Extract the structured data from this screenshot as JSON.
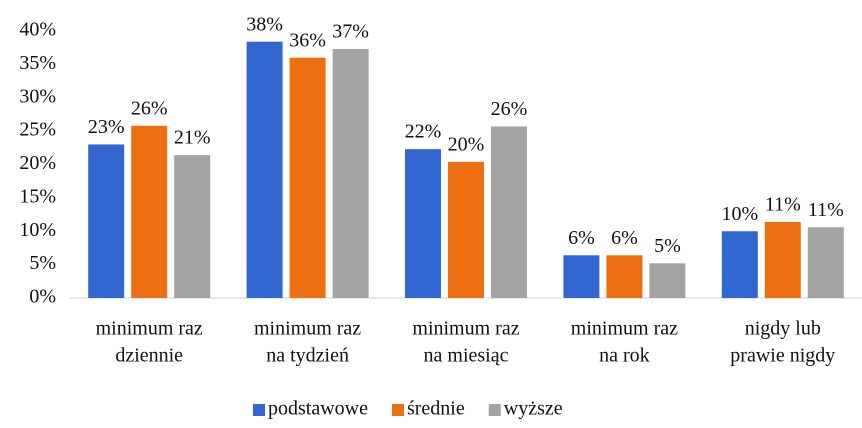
{
  "chart_data": {
    "type": "bar",
    "categories": [
      [
        "minimum raz",
        "dziennie"
      ],
      [
        "minimum raz",
        "na tydzień"
      ],
      [
        "minimum raz",
        "na miesiąc"
      ],
      [
        "minimum raz",
        "na rok"
      ],
      [
        "nigdy lub",
        "prawie nigdy"
      ]
    ],
    "series": [
      {
        "name": "podstawowe",
        "color": "#3266d0",
        "values": [
          23,
          38.4,
          22.3,
          6.4,
          10
        ],
        "value_labels": [
          "23%",
          "38%",
          "22%",
          "6%",
          "10%"
        ]
      },
      {
        "name": "średnie",
        "color": "#ee6e12",
        "values": [
          25.8,
          36,
          20.4,
          6.4,
          11.4
        ],
        "value_labels": [
          "26%",
          "36%",
          "20%",
          "6%",
          "11%"
        ]
      },
      {
        "name": "wyższe",
        "color": "#a3a3a3",
        "values": [
          21.4,
          37.3,
          25.7,
          5.2,
          10.6
        ],
        "value_labels": [
          "21%",
          "37%",
          "26%",
          "5%",
          "11%"
        ]
      }
    ],
    "ylim": [
      0,
      40
    ],
    "yticks": [
      {
        "value": 0,
        "label": "0%"
      },
      {
        "value": 5,
        "label": "5%"
      },
      {
        "value": 10,
        "label": "10%"
      },
      {
        "value": 15,
        "label": "15%"
      },
      {
        "value": 20,
        "label": "20%"
      },
      {
        "value": 25,
        "label": "25%"
      },
      {
        "value": 30,
        "label": "30%"
      },
      {
        "value": 35,
        "label": "35%"
      },
      {
        "value": 40,
        "label": "40%"
      }
    ],
    "legend": "bottom"
  }
}
